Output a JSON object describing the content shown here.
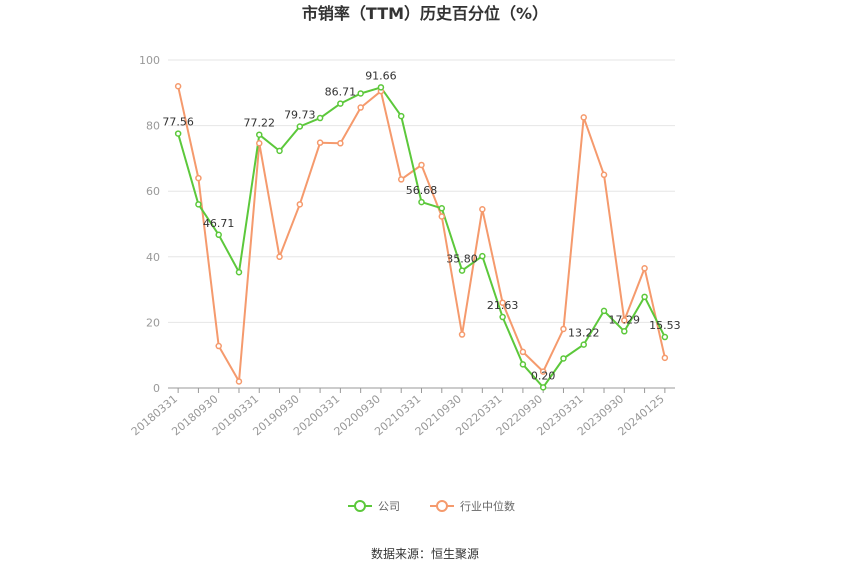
{
  "chart_data": {
    "type": "line",
    "title": "市销率（TTM）历史百分位（%）",
    "source": "数据来源：恒生聚源",
    "ylim": [
      0,
      100
    ],
    "yticks": [
      0,
      20,
      40,
      60,
      80,
      100
    ],
    "xtick_labels": [
      "20180331",
      "20180930",
      "20190331",
      "20190930",
      "20200331",
      "20200930",
      "20210331",
      "20210930",
      "20220331",
      "20220930",
      "20230331",
      "20230930",
      "20240125"
    ],
    "x": [
      "20180331",
      "20180630",
      "20180930",
      "20181231",
      "20190331",
      "20190630",
      "20190930",
      "20191231",
      "20200331",
      "20200630",
      "20200930",
      "20201231",
      "20210331",
      "20210630",
      "20210930",
      "20211231",
      "20220331",
      "20220630",
      "20220930",
      "20221231",
      "20230331",
      "20230630",
      "20230930",
      "20231231",
      "20240125"
    ],
    "grid": true,
    "legend": "bottom",
    "series": [
      {
        "name": "公司",
        "color": "#5cc83b",
        "values": [
          77.56,
          56.0,
          46.71,
          35.3,
          77.22,
          72.3,
          79.73,
          82.3,
          86.71,
          89.8,
          91.66,
          82.9,
          56.68,
          54.8,
          35.8,
          40.2,
          21.63,
          7.2,
          0.2,
          9.0,
          13.22,
          23.5,
          17.29,
          27.8,
          15.53
        ],
        "labels": [
          "77.56",
          null,
          "46.71",
          null,
          "77.22",
          null,
          "79.73",
          null,
          "86.71",
          null,
          "91.66",
          null,
          "56.68",
          null,
          "35.80",
          null,
          "21.63",
          null,
          "0.20",
          null,
          "13.22",
          null,
          "17.29",
          null,
          "15.53"
        ]
      },
      {
        "name": "行业中位数",
        "color": "#f59a6d",
        "values": [
          92.0,
          64.0,
          12.8,
          2.0,
          74.6,
          40.0,
          56.0,
          74.8,
          74.6,
          85.5,
          90.5,
          63.6,
          68.0,
          52.3,
          16.3,
          54.5,
          26.0,
          11.0,
          5.0,
          18.0,
          82.5,
          65.0,
          20.6,
          36.5,
          9.2
        ]
      }
    ]
  }
}
